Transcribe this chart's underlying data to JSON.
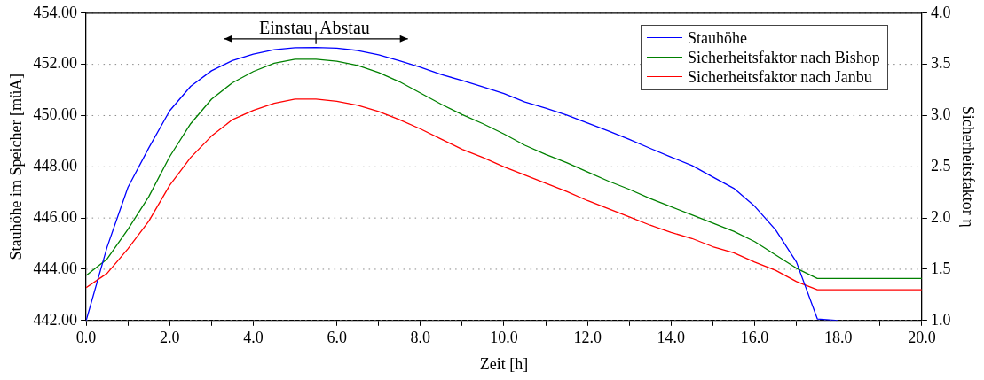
{
  "chart_data": {
    "type": "line",
    "xlabel": "Zeit [h]",
    "ylabel": "Stauhöhe im Speicher [müA]",
    "y2label": "Sicherheitsfaktor η",
    "xlim": [
      0,
      20
    ],
    "xticks": [
      {
        "value": 0,
        "label": "0.0"
      },
      {
        "value": 1,
        "label": null
      },
      {
        "value": 2,
        "label": "2.0"
      },
      {
        "value": 3,
        "label": null
      },
      {
        "value": 4,
        "label": "4.0"
      },
      {
        "value": 5,
        "label": null
      },
      {
        "value": 6,
        "label": "6.0"
      },
      {
        "value": 7,
        "label": null
      },
      {
        "value": 8,
        "label": "8.0"
      },
      {
        "value": 9,
        "label": null
      },
      {
        "value": 10,
        "label": "10.0"
      },
      {
        "value": 11,
        "label": null
      },
      {
        "value": 12,
        "label": "12.0"
      },
      {
        "value": 13,
        "label": null
      },
      {
        "value": 14,
        "label": "14.0"
      },
      {
        "value": 15,
        "label": null
      },
      {
        "value": 16,
        "label": "16.0"
      },
      {
        "value": 17,
        "label": null
      },
      {
        "value": 18,
        "label": "18.0"
      },
      {
        "value": 19,
        "label": null
      },
      {
        "value": 20,
        "label": "20.0"
      }
    ],
    "ylim": [
      442,
      454
    ],
    "yticks": [
      {
        "value": 442,
        "label": "442.00"
      },
      {
        "value": 444,
        "label": "444.00"
      },
      {
        "value": 446,
        "label": "446.00"
      },
      {
        "value": 448,
        "label": "448.00"
      },
      {
        "value": 450,
        "label": "450.00"
      },
      {
        "value": 452,
        "label": "452.00"
      },
      {
        "value": 454,
        "label": "454.00"
      }
    ],
    "y2lim": [
      1,
      4
    ],
    "y2ticks": [
      {
        "value": 1,
        "label": "1.0"
      },
      {
        "value": 1.5,
        "label": "1.5"
      },
      {
        "value": 2,
        "label": "2.0"
      },
      {
        "value": 2.5,
        "label": "2.5"
      },
      {
        "value": 3,
        "label": "3.0"
      },
      {
        "value": 3.5,
        "label": "3.5"
      },
      {
        "value": 4,
        "label": "4.0"
      }
    ],
    "grid": "y",
    "legend": "top right",
    "marker": "none",
    "line_style": "solid",
    "annotations": [
      "Einstau",
      "Abstau"
    ],
    "series": [
      {
        "name": "Stauhöhe",
        "color": "#0000ff",
        "x": [
          0,
          0.5,
          1,
          1.5,
          2,
          2.5,
          3,
          3.5,
          4,
          4.5,
          5,
          5.5,
          6,
          6.5,
          7,
          7.5,
          8,
          8.5,
          9,
          9.5,
          10,
          10.5,
          11,
          11.5,
          12,
          12.5,
          13,
          13.5,
          14,
          14.5,
          15,
          15.5,
          16,
          16.5,
          17,
          17.5,
          18
        ],
        "values": [
          442.0,
          444.86,
          447.2,
          448.74,
          450.19,
          451.14,
          451.75,
          452.15,
          452.4,
          452.57,
          452.65,
          452.66,
          452.63,
          452.54,
          452.37,
          452.14,
          451.89,
          451.6,
          451.37,
          451.12,
          450.86,
          450.53,
          450.29,
          450.02,
          449.71,
          449.4,
          449.07,
          448.72,
          448.38,
          448.05,
          447.6,
          447.16,
          446.46,
          445.54,
          444.28,
          442.06,
          442.0
        ]
      },
      {
        "name": "Sicherheitsfaktor nach Bishop",
        "color": "#008000",
        "axis": "y2",
        "x": [
          0,
          0.5,
          1,
          1.5,
          2,
          2.5,
          3,
          3.5,
          4,
          4.5,
          5,
          5.5,
          6,
          6.5,
          7,
          7.5,
          8,
          8.5,
          9,
          9.5,
          10,
          10.5,
          11,
          11.5,
          12,
          12.5,
          13,
          13.5,
          14,
          14.5,
          15,
          15.5,
          16,
          16.5,
          17,
          17.5,
          20
        ],
        "values": [
          1.44,
          1.6,
          1.89,
          2.21,
          2.6,
          2.92,
          3.16,
          3.32,
          3.43,
          3.51,
          3.55,
          3.55,
          3.53,
          3.49,
          3.42,
          3.33,
          3.22,
          3.11,
          3.01,
          2.92,
          2.82,
          2.71,
          2.62,
          2.54,
          2.45,
          2.36,
          2.28,
          2.19,
          2.11,
          2.03,
          1.95,
          1.87,
          1.77,
          1.64,
          1.51,
          1.41,
          1.41
        ]
      },
      {
        "name": "Sicherheitsfaktor nach Janbu",
        "color": "#ff0000",
        "axis": "y2",
        "x": [
          0,
          0.5,
          1,
          1.5,
          2,
          2.5,
          3,
          3.5,
          4,
          4.5,
          5,
          5.5,
          6,
          6.5,
          7,
          7.5,
          8,
          8.5,
          9,
          9.5,
          10,
          10.5,
          11,
          11.5,
          12,
          12.5,
          13,
          13.5,
          14,
          14.5,
          15,
          15.5,
          16,
          16.5,
          17,
          17.5,
          20
        ],
        "values": [
          1.32,
          1.46,
          1.7,
          1.97,
          2.32,
          2.59,
          2.8,
          2.96,
          3.05,
          3.12,
          3.16,
          3.16,
          3.14,
          3.1,
          3.04,
          2.96,
          2.87,
          2.77,
          2.67,
          2.59,
          2.5,
          2.42,
          2.34,
          2.26,
          2.17,
          2.09,
          2.01,
          1.93,
          1.86,
          1.8,
          1.72,
          1.66,
          1.57,
          1.49,
          1.38,
          1.3,
          1.3
        ]
      }
    ]
  }
}
